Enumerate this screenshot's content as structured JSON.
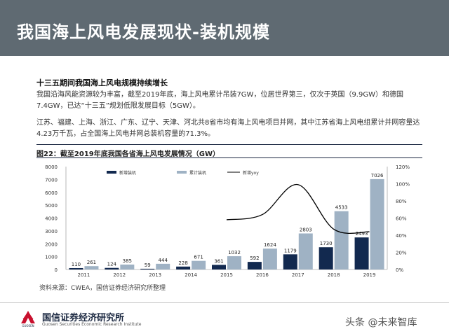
{
  "header": {
    "title": "我国海上风电发展现状-装机规模"
  },
  "section": {
    "heading": "十三五期间我国海上风电规模持续增长",
    "paragraph1": "我国沿海风能资源较为丰富，截至2019年底，海上风电累计吊装7GW，位居世界第三，仅次于英国（9.9GW）和德国7.4GW，已达“十三五”规划低限发展目标（5GW）。",
    "paragraph2": "江苏、福建、上海、浙江、广东、辽宁、天津、河北共8省市均有海上风电项目并网，其中江苏省海上风电组累计并网容量达4.23万千瓦，占全国海上风电并网总装机容量的71.3%。"
  },
  "figure": {
    "title": "图22：截至2019年底我国各省海上风电发展情况（GW）"
  },
  "source": "资料来源：CWEA，国信证券经济研究所整理",
  "footer": {
    "logo_text": "国信证券经济研究所",
    "logo_en": "Guosen Securities Economic Research Institute",
    "logo_mark": "GUOSEN",
    "watermark": "头条 @未来智库"
  },
  "colors": {
    "header_bg": "#5f6a72",
    "new_bar": "#12294f",
    "cum_bar": "#9fb2c4",
    "yoy_line": "#000000"
  },
  "chart_data": {
    "type": "bar",
    "categories": [
      "2011",
      "2012",
      "2013",
      "2014",
      "2015",
      "2016",
      "2017",
      "2018",
      "2019"
    ],
    "series": [
      {
        "name": "新增装机",
        "type": "bar",
        "axis": "left",
        "values": [
          110,
          124,
          59,
          228,
          361,
          592,
          1179,
          1730,
          2493
        ]
      },
      {
        "name": "累计装机",
        "type": "bar",
        "axis": "left",
        "values": [
          261,
          385,
          444,
          671,
          1032,
          1624,
          2803,
          4533,
          7026
        ]
      },
      {
        "name": "新增yoy",
        "type": "line",
        "axis": "right",
        "values": [
          null,
          null,
          null,
          null,
          58,
          64,
          99,
          47,
          44
        ]
      }
    ],
    "ylim": [
      0,
      8000
    ],
    "yticks": [
      0,
      1000,
      2000,
      3000,
      4000,
      5000,
      6000,
      7000,
      8000
    ],
    "y2lim": [
      0,
      120
    ],
    "y2ticks": [
      "0%",
      "20%",
      "40%",
      "60%",
      "80%",
      "100%",
      "120%"
    ],
    "legend_position": "top",
    "grid": false
  }
}
